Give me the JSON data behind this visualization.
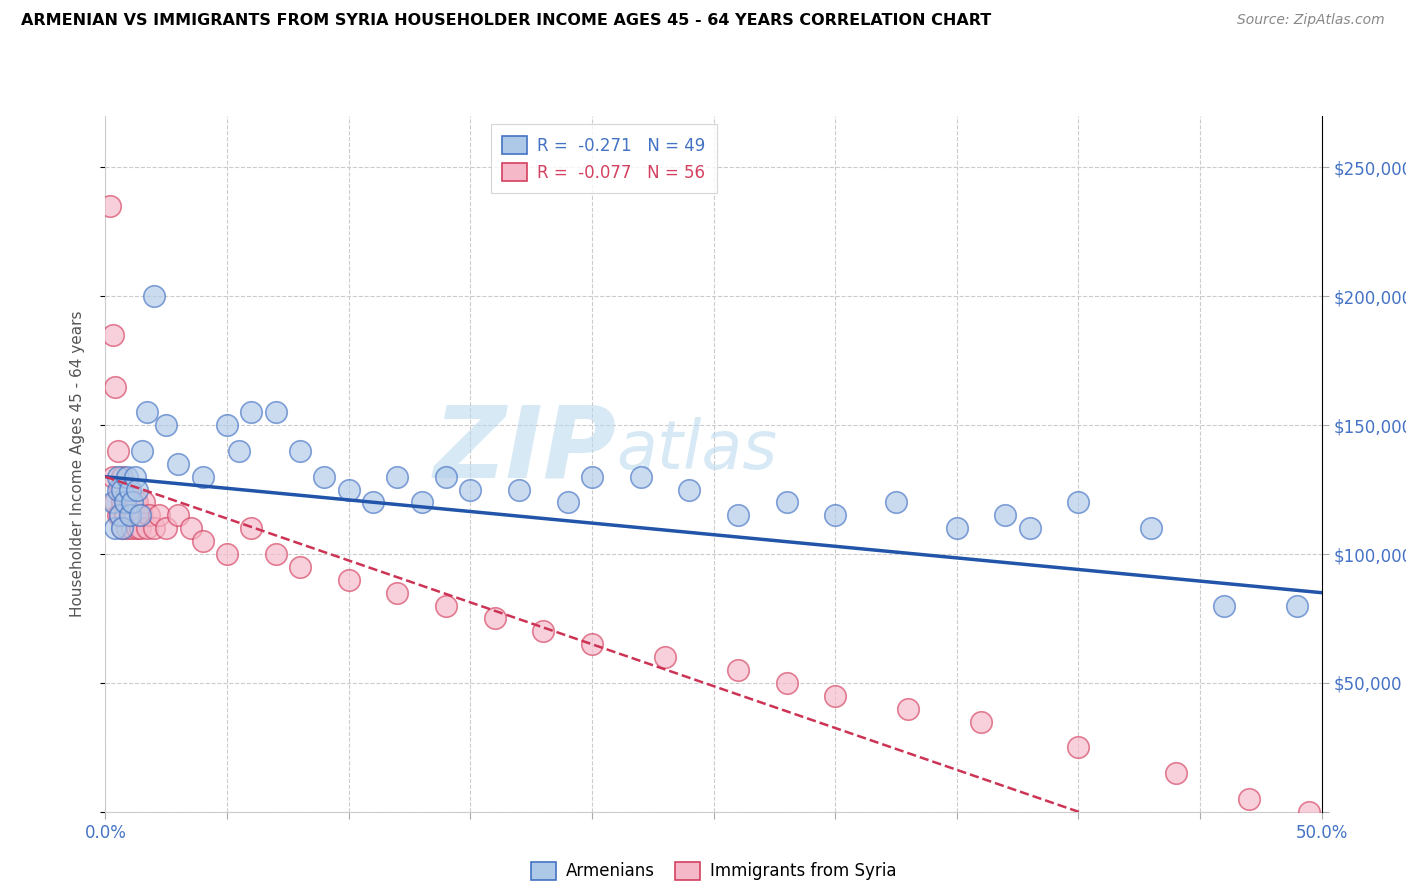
{
  "title": "ARMENIAN VS IMMIGRANTS FROM SYRIA HOUSEHOLDER INCOME AGES 45 - 64 YEARS CORRELATION CHART",
  "source": "Source: ZipAtlas.com",
  "ylabel": "Householder Income Ages 45 - 64 years",
  "xlim": [
    0.0,
    50.0
  ],
  "ylim": [
    0,
    270000
  ],
  "blue_color": "#aec9e8",
  "blue_edge": "#4472C4",
  "pink_color": "#f5b8c8",
  "pink_edge": "#d44060",
  "trend_blue_color": "#2255aa",
  "trend_pink_color": "#cc3355",
  "watermark_text": "ZIPAtlas",
  "legend1_text1": "R =  -0.271   N = 49",
  "legend1_text2": "R =  -0.077   N = 56",
  "legend2_text1": "Armenians",
  "legend2_text2": "Immigrants from Syria",
  "arm_x": [
    0.3,
    0.4,
    0.5,
    0.5,
    0.6,
    0.7,
    0.7,
    0.8,
    0.9,
    1.0,
    1.0,
    1.1,
    1.2,
    1.3,
    1.4,
    1.5,
    1.7,
    2.0,
    2.5,
    3.0,
    4.0,
    5.0,
    5.5,
    6.0,
    7.0,
    8.0,
    9.0,
    10.0,
    11.0,
    12.0,
    13.0,
    14.0,
    15.0,
    17.0,
    19.0,
    20.0,
    22.0,
    24.0,
    26.0,
    28.0,
    30.0,
    32.5,
    35.0,
    37.0,
    38.0,
    40.0,
    43.0,
    46.0,
    49.0
  ],
  "arm_y": [
    120000,
    110000,
    125000,
    130000,
    115000,
    125000,
    110000,
    120000,
    130000,
    115000,
    125000,
    120000,
    130000,
    125000,
    115000,
    140000,
    155000,
    200000,
    150000,
    135000,
    130000,
    150000,
    140000,
    155000,
    155000,
    140000,
    130000,
    125000,
    120000,
    130000,
    120000,
    130000,
    125000,
    125000,
    120000,
    130000,
    130000,
    125000,
    115000,
    120000,
    115000,
    120000,
    110000,
    115000,
    110000,
    120000,
    110000,
    80000,
    80000
  ],
  "syr_x": [
    0.2,
    0.3,
    0.3,
    0.4,
    0.4,
    0.5,
    0.5,
    0.6,
    0.6,
    0.7,
    0.7,
    0.7,
    0.8,
    0.8,
    0.9,
    0.9,
    1.0,
    1.0,
    1.0,
    1.1,
    1.1,
    1.2,
    1.2,
    1.3,
    1.3,
    1.4,
    1.5,
    1.6,
    1.7,
    1.8,
    2.0,
    2.2,
    2.5,
    3.0,
    3.5,
    4.0,
    5.0,
    6.0,
    7.0,
    8.0,
    10.0,
    12.0,
    14.0,
    16.0,
    18.0,
    20.0,
    23.0,
    26.0,
    28.0,
    30.0,
    33.0,
    36.0,
    40.0,
    44.0,
    47.0,
    49.5
  ],
  "syr_y": [
    235000,
    130000,
    185000,
    120000,
    165000,
    115000,
    140000,
    125000,
    115000,
    120000,
    110000,
    130000,
    120000,
    115000,
    125000,
    110000,
    115000,
    125000,
    120000,
    115000,
    110000,
    120000,
    115000,
    110000,
    120000,
    110000,
    115000,
    120000,
    110000,
    115000,
    110000,
    115000,
    110000,
    115000,
    110000,
    105000,
    100000,
    110000,
    100000,
    95000,
    90000,
    85000,
    80000,
    75000,
    70000,
    65000,
    60000,
    55000,
    50000,
    45000,
    40000,
    35000,
    25000,
    15000,
    5000,
    0
  ]
}
